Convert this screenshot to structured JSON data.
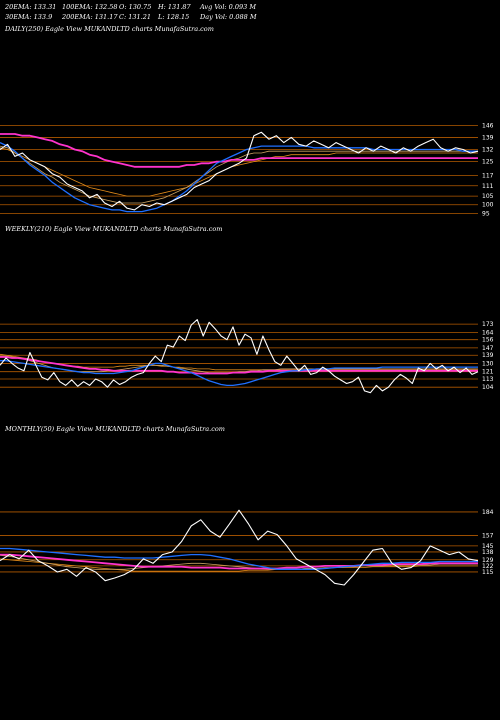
{
  "header": {
    "row1": [
      "20EMA: 133.31",
      "100EMA: 132.58",
      "O: 130.75",
      "H: 131.87",
      "Avg Vol: 0.093 M"
    ],
    "row2": [
      "30EMA: 133.9",
      "200EMA: 131.17",
      "C: 131.21",
      "L: 128.15",
      "Day Vol: 0.088 M"
    ]
  },
  "colors": {
    "price": "#ffffff",
    "ema_fast": "#1f6fff",
    "ema_slow": "#ff33cc",
    "ma_gold": "#c8a060",
    "ma_orange": "#e08a1a",
    "grid_orange": "#b35a00",
    "background": "#000000"
  },
  "chart_data": [
    {
      "type": "line",
      "title": "DAILY(250) Eagle  View  MUKANDLTD charts MunafaSutra.com",
      "yticks": [
        146,
        139,
        132,
        125,
        117,
        111,
        105,
        100,
        95
      ],
      "ylim": [
        90,
        152
      ],
      "grid": true,
      "series": [
        {
          "role": "price",
          "values": [
            132,
            135,
            128,
            130,
            126,
            124,
            122,
            118,
            116,
            112,
            110,
            108,
            104,
            106,
            101,
            99,
            102,
            98,
            97,
            100,
            99,
            101,
            100,
            102,
            104,
            106,
            110,
            112,
            114,
            118,
            120,
            122,
            124,
            127,
            140,
            142,
            138,
            140,
            136,
            139,
            135,
            134,
            137,
            135,
            133,
            136,
            134,
            132,
            130,
            133,
            131,
            134,
            132,
            130,
            133,
            131,
            134,
            136,
            138,
            133,
            131,
            133,
            132,
            130,
            131
          ]
        },
        {
          "role": "ema_fast",
          "values": [
            136,
            134,
            131,
            127,
            123,
            120,
            117,
            113,
            110,
            107,
            104,
            102,
            100,
            99,
            98,
            97,
            97,
            96,
            96,
            96,
            97,
            98,
            100,
            102,
            105,
            108,
            112,
            116,
            120,
            124,
            126,
            128,
            130,
            132,
            133,
            134,
            134,
            134,
            134,
            134,
            134,
            134,
            133,
            133,
            133,
            133,
            133,
            133,
            133,
            133,
            132,
            132,
            132,
            132,
            132,
            132,
            132,
            132,
            132,
            132,
            132,
            132,
            131,
            131,
            131
          ]
        },
        {
          "role": "ema_slow",
          "values": [
            141,
            141,
            141,
            140,
            140,
            139,
            138,
            137,
            135,
            134,
            132,
            131,
            129,
            128,
            126,
            125,
            124,
            123,
            122,
            122,
            122,
            122,
            122,
            122,
            122,
            123,
            123,
            124,
            124,
            125,
            125,
            126,
            126,
            126,
            126,
            127,
            127,
            127,
            127,
            127,
            127,
            127,
            127,
            127,
            127,
            127,
            127,
            127,
            127,
            127,
            127,
            127,
            127,
            127,
            127,
            127,
            127,
            127,
            127,
            127,
            127,
            127,
            127,
            127,
            127
          ]
        },
        {
          "role": "ma_gold",
          "values": [
            134,
            133,
            130,
            127,
            124,
            121,
            118,
            116,
            113,
            111,
            109,
            107,
            105,
            104,
            103,
            102,
            101,
            101,
            101,
            101,
            102,
            103,
            104,
            106,
            108,
            110,
            113,
            116,
            119,
            122,
            124,
            126,
            127,
            129,
            130,
            130,
            131,
            131,
            131,
            131,
            131,
            131,
            131,
            131,
            131,
            131,
            131,
            131,
            131,
            131,
            131,
            131,
            131,
            131,
            131,
            131,
            131,
            131,
            131,
            131,
            131,
            131,
            131,
            131,
            131
          ]
        },
        {
          "role": "ma_orange",
          "values": [
            133,
            132,
            130,
            128,
            126,
            124,
            122,
            120,
            118,
            116,
            114,
            112,
            110,
            109,
            108,
            107,
            106,
            105,
            105,
            105,
            105,
            106,
            107,
            108,
            109,
            110,
            112,
            114,
            116,
            118,
            120,
            122,
            123,
            124,
            125,
            126,
            127,
            128,
            128,
            129,
            129,
            129,
            129,
            129,
            129,
            130,
            130,
            130,
            130,
            130,
            130,
            130,
            130,
            130,
            130,
            130,
            130,
            130,
            130,
            130,
            130,
            130,
            130,
            130,
            130
          ]
        }
      ]
    },
    {
      "type": "line",
      "title": "WEEKLY(210) Eagle  View  MUKANDLTD charts MunafaSutra.com",
      "yticks": [
        173,
        164,
        156,
        147,
        139,
        130,
        121,
        113,
        104
      ],
      "ylim": [
        90,
        183
      ],
      "grid": true,
      "series": [
        {
          "role": "price",
          "values": [
            128,
            136,
            130,
            125,
            122,
            142,
            128,
            115,
            112,
            120,
            110,
            106,
            112,
            105,
            110,
            106,
            113,
            110,
            104,
            112,
            107,
            110,
            115,
            118,
            120,
            130,
            138,
            132,
            150,
            148,
            160,
            155,
            172,
            178,
            160,
            175,
            168,
            160,
            156,
            170,
            150,
            162,
            158,
            140,
            160,
            145,
            132,
            128,
            138,
            130,
            122,
            128,
            118,
            120,
            126,
            122,
            116,
            112,
            108,
            110,
            115,
            100,
            98,
            106,
            100,
            104,
            112,
            118,
            114,
            108,
            125,
            122,
            130,
            124,
            128,
            122,
            126,
            120,
            125,
            118,
            121
          ]
        },
        {
          "role": "ema_fast",
          "values": [
            133,
            133,
            132,
            131,
            130,
            129,
            128,
            127,
            126,
            125,
            124,
            123,
            122,
            121,
            120,
            120,
            119,
            119,
            119,
            119,
            120,
            121,
            122,
            124,
            126,
            128,
            130,
            130,
            128,
            126,
            124,
            122,
            120,
            117,
            114,
            111,
            109,
            107,
            106,
            106,
            107,
            108,
            110,
            112,
            114,
            116,
            118,
            120,
            121,
            122,
            122,
            123,
            123,
            124,
            124,
            124,
            125,
            125,
            125,
            125,
            125,
            125,
            125,
            125,
            126,
            126,
            126,
            126,
            126,
            126,
            126,
            126,
            126,
            126,
            126,
            126,
            126,
            126,
            126,
            126,
            126
          ]
        },
        {
          "role": "ema_slow",
          "values": [
            137,
            137,
            136,
            136,
            135,
            134,
            133,
            132,
            131,
            130,
            129,
            128,
            127,
            126,
            125,
            124,
            124,
            123,
            123,
            122,
            122,
            122,
            122,
            122,
            122,
            122,
            122,
            122,
            121,
            121,
            120,
            120,
            120,
            119,
            119,
            119,
            119,
            119,
            119,
            120,
            120,
            120,
            121,
            121,
            121,
            122,
            122,
            122,
            122,
            122,
            122,
            122,
            122,
            122,
            122,
            122,
            122,
            122,
            122,
            122,
            122,
            122,
            122,
            122,
            122,
            122,
            122,
            122,
            122,
            122,
            122,
            122,
            122,
            122,
            122,
            122,
            122,
            122,
            122,
            122,
            122
          ]
        },
        {
          "role": "ma_gold",
          "values": [
            138,
            138,
            137,
            136,
            135,
            133,
            131,
            129,
            127,
            125,
            124,
            123,
            122,
            121,
            121,
            121,
            121,
            121,
            122,
            122,
            123,
            124,
            125,
            126,
            127,
            128,
            128,
            128,
            127,
            126,
            125,
            124,
            123,
            122,
            121,
            120,
            120,
            120,
            120,
            120,
            121,
            121,
            122,
            122,
            123,
            123,
            123,
            124,
            124,
            124,
            124,
            124,
            124,
            124,
            124,
            124,
            124,
            124,
            124,
            124,
            124,
            124,
            124,
            124,
            124,
            124,
            124,
            124,
            124,
            124,
            124,
            124,
            124,
            124,
            124,
            124,
            124,
            124,
            124,
            124,
            124
          ]
        },
        {
          "role": "ma_orange",
          "values": [
            140,
            139,
            138,
            137,
            136,
            135,
            134,
            132,
            131,
            130,
            129,
            128,
            127,
            127,
            126,
            126,
            126,
            126,
            126,
            126,
            127,
            127,
            128,
            128,
            128,
            128,
            128,
            127,
            127,
            126,
            126,
            125,
            125,
            124,
            124,
            124,
            123,
            123,
            123,
            123,
            123,
            123,
            123,
            123,
            123,
            123,
            123,
            123,
            123,
            123,
            123,
            123,
            123,
            123,
            123,
            123,
            123,
            123,
            123,
            123,
            123,
            123,
            123,
            123,
            123,
            123,
            123,
            123,
            123,
            123,
            123,
            123,
            123,
            123,
            123,
            123,
            123,
            123,
            123,
            123,
            123
          ]
        }
      ]
    },
    {
      "type": "line",
      "title": "MONTHLY(50) Eagle  View  MUKANDLTD charts MunafaSutra.com",
      "yticks": [
        184,
        157,
        145,
        138,
        129,
        122,
        115
      ],
      "ylim": [
        100,
        192
      ],
      "grid": true,
      "series": [
        {
          "role": "price",
          "values": [
            128,
            135,
            130,
            140,
            128,
            122,
            115,
            118,
            110,
            120,
            115,
            105,
            108,
            112,
            118,
            130,
            125,
            135,
            138,
            150,
            168,
            175,
            162,
            155,
            170,
            186,
            170,
            152,
            162,
            158,
            145,
            130,
            124,
            118,
            112,
            102,
            100,
            112,
            126,
            140,
            142,
            125,
            118,
            120,
            128,
            145,
            140,
            135,
            138,
            130,
            128
          ]
        },
        {
          "role": "ema_fast",
          "values": [
            142,
            142,
            141,
            140,
            139,
            138,
            137,
            136,
            135,
            134,
            133,
            132,
            132,
            131,
            131,
            131,
            131,
            132,
            133,
            134,
            135,
            135,
            134,
            132,
            130,
            127,
            124,
            122,
            120,
            118,
            118,
            118,
            118,
            118,
            119,
            120,
            121,
            122,
            123,
            124,
            125,
            125,
            126,
            126,
            126,
            126,
            127,
            127,
            127,
            127,
            127
          ]
        },
        {
          "role": "ema_slow",
          "values": [
            135,
            135,
            134,
            133,
            132,
            131,
            130,
            129,
            128,
            127,
            126,
            125,
            124,
            123,
            122,
            121,
            121,
            121,
            121,
            121,
            120,
            120,
            120,
            120,
            119,
            119,
            119,
            119,
            119,
            119,
            120,
            120,
            121,
            121,
            122,
            122,
            122,
            122,
            123,
            123,
            123,
            124,
            124,
            124,
            124,
            125,
            125,
            125,
            125,
            125,
            125
          ]
        },
        {
          "role": "ma_gold",
          "values": [
            134,
            133,
            131,
            129,
            127,
            125,
            123,
            121,
            120,
            119,
            118,
            118,
            118,
            118,
            119,
            120,
            121,
            122,
            123,
            124,
            125,
            125,
            124,
            123,
            122,
            121,
            120,
            119,
            118,
            118,
            118,
            118,
            119,
            119,
            120,
            120,
            121,
            121,
            122,
            122,
            122,
            123,
            123,
            123,
            123,
            123,
            124,
            124,
            124,
            124,
            124
          ]
        },
        {
          "role": "ma_orange",
          "values": [
            130,
            129,
            128,
            127,
            126,
            125,
            124,
            123,
            122,
            121,
            120,
            119,
            118,
            117,
            116,
            116,
            116,
            116,
            116,
            116,
            116,
            116,
            116,
            116,
            116,
            116,
            117,
            117,
            117,
            118,
            118,
            118,
            119,
            119,
            119,
            120,
            120,
            120,
            120,
            121,
            121,
            121,
            121,
            121,
            122,
            122,
            122,
            122,
            122,
            122,
            122
          ]
        }
      ]
    }
  ]
}
